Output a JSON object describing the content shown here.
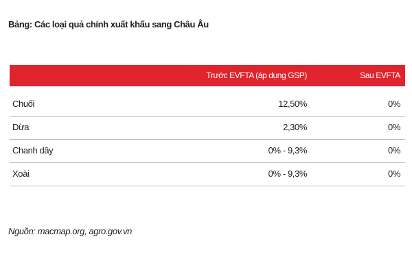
{
  "title": "Bảng: Các loại quả chính xuất khẩu sang Châu Âu",
  "table": {
    "header": [
      "",
      "Trước EVFTA (áp dụng GSP)",
      "Sau EVFTA"
    ],
    "rows": [
      [
        "Chuối",
        "12,50%",
        "0%"
      ],
      [
        "Dừa",
        "2,30%",
        "0%"
      ],
      [
        "Chanh dây",
        "0% - 9,3%",
        "0%"
      ],
      [
        "Xoài",
        "0% - 9,3%",
        "0%"
      ]
    ]
  },
  "source": "Nguồn: macmap.org, agro.gov.vn"
}
